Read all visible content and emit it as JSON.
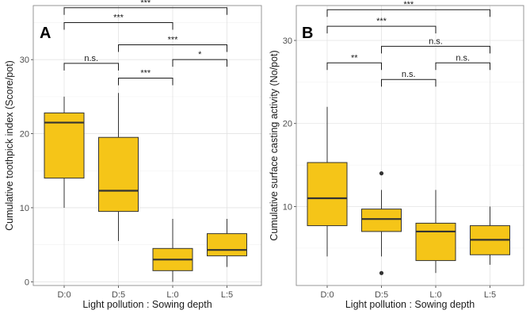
{
  "chart_data": [
    {
      "type": "boxplot",
      "panel_label": "A",
      "title": "",
      "xlabel": "Light pollution : Sowing depth",
      "ylabel": "Cumulative toothpick index (Score/pot)",
      "ylim": [
        -0.5,
        37.3
      ],
      "yticks": [
        0,
        10,
        20,
        30
      ],
      "categories": [
        "D:0",
        "D:5",
        "L:0",
        "L:5"
      ],
      "box_color": "#F5C518",
      "boxes": [
        {
          "category": "D:0",
          "whisker_low": 10,
          "q1": 14,
          "median": 21.5,
          "q3": 22.8,
          "whisker_high": 25,
          "outliers": []
        },
        {
          "category": "D:5",
          "whisker_low": 5.5,
          "q1": 9.5,
          "median": 12.3,
          "q3": 19.5,
          "whisker_high": 25.5,
          "outliers": []
        },
        {
          "category": "L:0",
          "whisker_low": 0,
          "q1": 1.5,
          "median": 3,
          "q3": 4.5,
          "whisker_high": 8.5,
          "outliers": []
        },
        {
          "category": "L:5",
          "whisker_low": 2,
          "q1": 3.5,
          "median": 4.3,
          "q3": 6.5,
          "whisker_high": 8.5,
          "outliers": []
        }
      ],
      "comparisons": [
        {
          "from": "D:0",
          "to": "L:5",
          "y": 37,
          "label": "***"
        },
        {
          "from": "D:0",
          "to": "L:0",
          "y": 35,
          "label": "***"
        },
        {
          "from": "D:5",
          "to": "L:5",
          "y": 32,
          "label": "***"
        },
        {
          "from": "L:0",
          "to": "L:5",
          "y": 30,
          "label": "*"
        },
        {
          "from": "D:0",
          "to": "D:5",
          "y": 29.5,
          "label": "n.s."
        },
        {
          "from": "D:5",
          "to": "L:0",
          "y": 27.5,
          "label": "***"
        }
      ]
    },
    {
      "type": "boxplot",
      "panel_label": "B",
      "title": "",
      "xlabel": "Light pollution : Sowing depth",
      "ylabel": "Cumulative surface casting activity (No/pot)",
      "ylim": [
        0.5,
        34.2
      ],
      "yticks": [
        10,
        20,
        30
      ],
      "categories": [
        "D:0",
        "D:5",
        "L:0",
        "L:5"
      ],
      "box_color": "#F5C518",
      "boxes": [
        {
          "category": "D:0",
          "whisker_low": 4,
          "q1": 7.7,
          "median": 11,
          "q3": 15.3,
          "whisker_high": 22,
          "outliers": []
        },
        {
          "category": "D:5",
          "whisker_low": 4,
          "q1": 7,
          "median": 8.5,
          "q3": 9.7,
          "whisker_high": 12,
          "outliers": [
            2,
            14
          ]
        },
        {
          "category": "L:0",
          "whisker_low": 2,
          "q1": 3.5,
          "median": 7,
          "q3": 8,
          "whisker_high": 12,
          "outliers": []
        },
        {
          "category": "L:5",
          "whisker_low": 3,
          "q1": 4.2,
          "median": 6,
          "q3": 7.7,
          "whisker_high": 10,
          "outliers": []
        }
      ],
      "comparisons": [
        {
          "from": "D:0",
          "to": "L:5",
          "y": 33.7,
          "label": "***"
        },
        {
          "from": "D:0",
          "to": "L:0",
          "y": 31.7,
          "label": "***"
        },
        {
          "from": "D:5",
          "to": "L:5",
          "y": 29.3,
          "label": "n.s."
        },
        {
          "from": "D:0",
          "to": "D:5",
          "y": 27.3,
          "label": "**"
        },
        {
          "from": "L:0",
          "to": "L:5",
          "y": 27.3,
          "label": "n.s."
        },
        {
          "from": "D:5",
          "to": "L:0",
          "y": 25.3,
          "label": "n.s."
        }
      ]
    }
  ]
}
